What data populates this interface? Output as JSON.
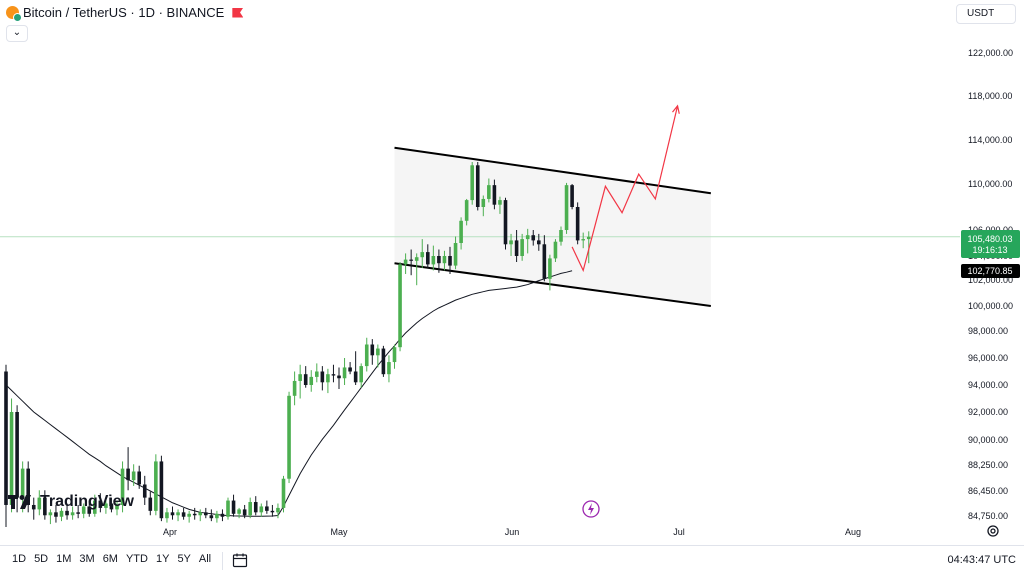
{
  "header": {
    "symbol_title": "Bitcoin / TetherUS · 1D · BINANCE",
    "collapse_glyph": "⌄",
    "currency": "USDT",
    "flag_color": "#f23645"
  },
  "price_labels": {
    "last_price": "105,480.03",
    "countdown": "19:16:13",
    "ma_price": "102,770.85",
    "last_color": "#26a65b",
    "ma_color": "#000000"
  },
  "branding": {
    "logo_text": "TradingView"
  },
  "bottom_bar": {
    "ranges": [
      "1D",
      "5D",
      "1M",
      "3M",
      "6M",
      "YTD",
      "1Y",
      "5Y",
      "All"
    ],
    "clock": "04:43:47 UTC"
  },
  "icons": {
    "calendar": "calendar-range-icon",
    "settings": "settings-icon",
    "flash": "flash-icon"
  },
  "chart_data": {
    "type": "candlestick",
    "x_ticks": [
      "Apr",
      "May",
      "Jun",
      "Jul",
      "Aug"
    ],
    "y_ticks": [
      84750,
      86450,
      88250,
      90000,
      92000,
      94000,
      96000,
      98000,
      100000,
      102000,
      104000,
      106000,
      110000,
      114000,
      118000,
      122000
    ],
    "y_tick_labels": [
      "84,750.00",
      "86,450.00",
      "88,250.00",
      "90,000.00",
      "92,000.00",
      "94,000.00",
      "96,000.00",
      "98,000.00",
      "100,000.00",
      "102,000.00",
      "104,000.00",
      "106,000.00",
      "110,000.00",
      "114,000.00",
      "118,000.00",
      "122,000.00"
    ],
    "colors": {
      "up": "#4caf50",
      "down": "#131722",
      "ma": "#131722",
      "projection": "#f23645",
      "channel_fill": "#f5f5f5"
    },
    "candles": [
      [
        95000,
        95500,
        84000,
        85500
      ],
      [
        85500,
        93000,
        85000,
        92000
      ],
      [
        92000,
        92500,
        85000,
        86000
      ],
      [
        86000,
        88500,
        85000,
        88000
      ],
      [
        88000,
        88500,
        85000,
        85500
      ],
      [
        85500,
        86000,
        84500,
        85200
      ],
      [
        85200,
        86500,
        84800,
        86000
      ],
      [
        86000,
        86500,
        84500,
        84800
      ],
      [
        84800,
        85200,
        84200,
        85000
      ],
      [
        85000,
        85500,
        84300,
        84700
      ],
      [
        84700,
        85300,
        84400,
        85100
      ],
      [
        85100,
        85600,
        84500,
        84800
      ],
      [
        84800,
        85400,
        84500,
        85000
      ],
      [
        85000,
        85500,
        84600,
        84900
      ],
      [
        84900,
        85600,
        84600,
        85400
      ],
      [
        85400,
        85800,
        84700,
        84900
      ],
      [
        84900,
        86200,
        84700,
        85800
      ],
      [
        85800,
        86300,
        85000,
        85300
      ],
      [
        85300,
        85900,
        84900,
        85600
      ],
      [
        85600,
        86000,
        85000,
        85200
      ],
      [
        85200,
        85800,
        84800,
        85500
      ],
      [
        85500,
        88500,
        85000,
        88000
      ],
      [
        88000,
        89500,
        86500,
        87200
      ],
      [
        87200,
        88300,
        86800,
        87800
      ],
      [
        87800,
        88200,
        86600,
        86900
      ],
      [
        86900,
        87500,
        85500,
        86000
      ],
      [
        86000,
        86400,
        84800,
        85100
      ],
      [
        85100,
        89000,
        84800,
        88500
      ],
      [
        88500,
        88900,
        84400,
        84600
      ],
      [
        84600,
        85300,
        84300,
        85000
      ],
      [
        85000,
        85400,
        84500,
        84800
      ],
      [
        84800,
        85200,
        84400,
        85000
      ],
      [
        85000,
        85300,
        84500,
        84700
      ],
      [
        84700,
        85100,
        84300,
        84900
      ],
      [
        84900,
        85300,
        84500,
        84800
      ],
      [
        84800,
        85200,
        84400,
        85000
      ],
      [
        85000,
        85300,
        84600,
        84800
      ],
      [
        84800,
        85200,
        84400,
        84600
      ],
      [
        84600,
        85100,
        84300,
        84900
      ],
      [
        84900,
        85200,
        84400,
        84700
      ],
      [
        84700,
        86000,
        84500,
        85800
      ],
      [
        85800,
        86200,
        84700,
        84900
      ],
      [
        84900,
        85300,
        84600,
        85200
      ],
      [
        85200,
        85500,
        84600,
        84800
      ],
      [
        84800,
        86000,
        84600,
        85700
      ],
      [
        85700,
        86100,
        84800,
        85000
      ],
      [
        85000,
        85600,
        84700,
        85400
      ],
      [
        85400,
        85800,
        84900,
        85100
      ],
      [
        85100,
        85500,
        84700,
        85000
      ],
      [
        85000,
        85600,
        84600,
        85300
      ],
      [
        85300,
        87500,
        85000,
        87300
      ],
      [
        87300,
        93500,
        87000,
        93200
      ],
      [
        93200,
        95000,
        92500,
        94300
      ],
      [
        94300,
        95500,
        93000,
        94800
      ],
      [
        94800,
        95400,
        93800,
        94000
      ],
      [
        94000,
        95100,
        93500,
        94600
      ],
      [
        94600,
        95600,
        94200,
        95000
      ],
      [
        95000,
        95400,
        93600,
        94200
      ],
      [
        94200,
        95200,
        93400,
        94800
      ],
      [
        94800,
        95500,
        94200,
        94700
      ],
      [
        94700,
        95300,
        93700,
        94500
      ],
      [
        94500,
        96000,
        94000,
        95300
      ],
      [
        95300,
        95700,
        94800,
        95000
      ],
      [
        95000,
        96500,
        94000,
        94200
      ],
      [
        94200,
        95600,
        93800,
        95400
      ],
      [
        95400,
        97500,
        95000,
        97000
      ],
      [
        97000,
        97400,
        95500,
        96200
      ],
      [
        96200,
        97000,
        95300,
        96700
      ],
      [
        96700,
        96900,
        94600,
        94800
      ],
      [
        94800,
        96200,
        94200,
        95700
      ],
      [
        95700,
        97000,
        95200,
        96800
      ],
      [
        96800,
        103500,
        96500,
        103300
      ],
      [
        103300,
        104200,
        102500,
        103700
      ],
      [
        103700,
        104500,
        102400,
        103600
      ],
      [
        103600,
        104200,
        101600,
        103900
      ],
      [
        103900,
        105300,
        103000,
        104300
      ],
      [
        104300,
        104900,
        103000,
        103300
      ],
      [
        103300,
        104800,
        102800,
        104000
      ],
      [
        104000,
        104500,
        102600,
        103400
      ],
      [
        103400,
        104400,
        102800,
        104000
      ],
      [
        104000,
        104700,
        102500,
        103200
      ],
      [
        103200,
        105500,
        102900,
        105000
      ],
      [
        105000,
        107100,
        104500,
        106800
      ],
      [
        106800,
        108700,
        106400,
        108600
      ],
      [
        108600,
        112000,
        108200,
        111700
      ],
      [
        111700,
        112000,
        107700,
        108000
      ],
      [
        108000,
        109000,
        107200,
        108700
      ],
      [
        108700,
        110500,
        108400,
        109900
      ],
      [
        109900,
        110400,
        107800,
        108200
      ],
      [
        108200,
        108900,
        107400,
        108600
      ],
      [
        108600,
        108800,
        104500,
        104900
      ],
      [
        104900,
        105700,
        104000,
        105200
      ],
      [
        105200,
        106000,
        103500,
        104000
      ],
      [
        104000,
        105700,
        103600,
        105300
      ],
      [
        105300,
        106100,
        104200,
        105600
      ],
      [
        105600,
        106000,
        104800,
        105200
      ],
      [
        105200,
        105700,
        104400,
        104900
      ],
      [
        104900,
        105600,
        101900,
        102100
      ],
      [
        102100,
        104100,
        101200,
        103800
      ],
      [
        103800,
        105300,
        103500,
        105100
      ],
      [
        105100,
        106300,
        104800,
        106000
      ],
      [
        106000,
        110100,
        105700,
        109900
      ],
      [
        109900,
        110000,
        107800,
        108000
      ],
      [
        108000,
        108400,
        104900,
        105200
      ],
      [
        105200,
        105800,
        104600,
        105300
      ],
      [
        105300,
        105900,
        103400,
        105480
      ]
    ],
    "ma_series": [
      94000,
      93600,
      93200,
      92800,
      92400,
      92000,
      91700,
      91400,
      91100,
      90800,
      90500,
      90200,
      89900,
      89600,
      89300,
      89000,
      88750,
      88500,
      88200,
      87950,
      87700,
      87450,
      87250,
      87050,
      86850,
      86650,
      86450,
      86250,
      86050,
      85850,
      85650,
      85500,
      85350,
      85200,
      85100,
      85000,
      84950,
      84900,
      84850,
      84800,
      84780,
      84760,
      84750,
      84740,
      84730,
      84730,
      84730,
      84740,
      84750,
      84780,
      85400,
      86150,
      86900,
      87650,
      88300,
      88950,
      89500,
      90050,
      90550,
      91050,
      91600,
      92150,
      92700,
      93250,
      93800,
      94350,
      94900,
      95450,
      95950,
      96450,
      96900,
      97400,
      97850,
      98250,
      98650,
      99000,
      99300,
      99600,
      99850,
      100050,
      100250,
      100450,
      100600,
      100750,
      100900,
      101000,
      101100,
      101200,
      101250,
      101300,
      101350,
      101400,
      101450,
      101550,
      101650,
      101800,
      101950,
      102100,
      102250,
      102400,
      102550,
      102650,
      102770
    ],
    "channel": {
      "upper": [
        [
          70,
          113300
        ],
        [
          127,
          109200
        ]
      ],
      "lower": [
        [
          70,
          103400
        ],
        [
          127,
          100000
        ]
      ]
    },
    "projection": [
      [
        102,
        104700
      ],
      [
        104,
        102800
      ],
      [
        108,
        109800
      ],
      [
        111,
        107500
      ],
      [
        114,
        110900
      ],
      [
        117,
        108700
      ],
      [
        121,
        117100
      ]
    ],
    "ylim": [
      84750,
      124000
    ]
  }
}
